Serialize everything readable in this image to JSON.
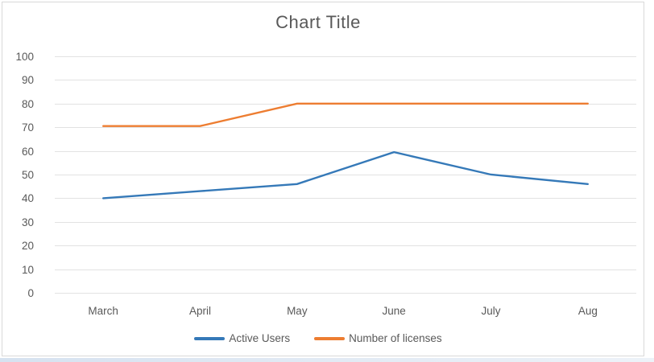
{
  "chart_data": {
    "type": "line",
    "title": "Chart Title",
    "categories": [
      "March",
      "April",
      "May",
      "June",
      "July",
      "Aug"
    ],
    "series": [
      {
        "name": "Active Users",
        "color": "#3579B8",
        "values": [
          40,
          43,
          46,
          59.5,
          50,
          46
        ]
      },
      {
        "name": "Number of licenses",
        "color": "#ED7D31",
        "values": [
          70.5,
          70.5,
          80,
          80,
          80,
          80
        ]
      }
    ],
    "ylim": [
      0,
      100
    ],
    "ytick_step": 10,
    "xlabel": "",
    "ylabel": "",
    "grid": "horizontal",
    "legend_position": "bottom",
    "title_color": "#595959",
    "axis_label_color": "#595959",
    "gridline_color": "#E2E2E2"
  }
}
